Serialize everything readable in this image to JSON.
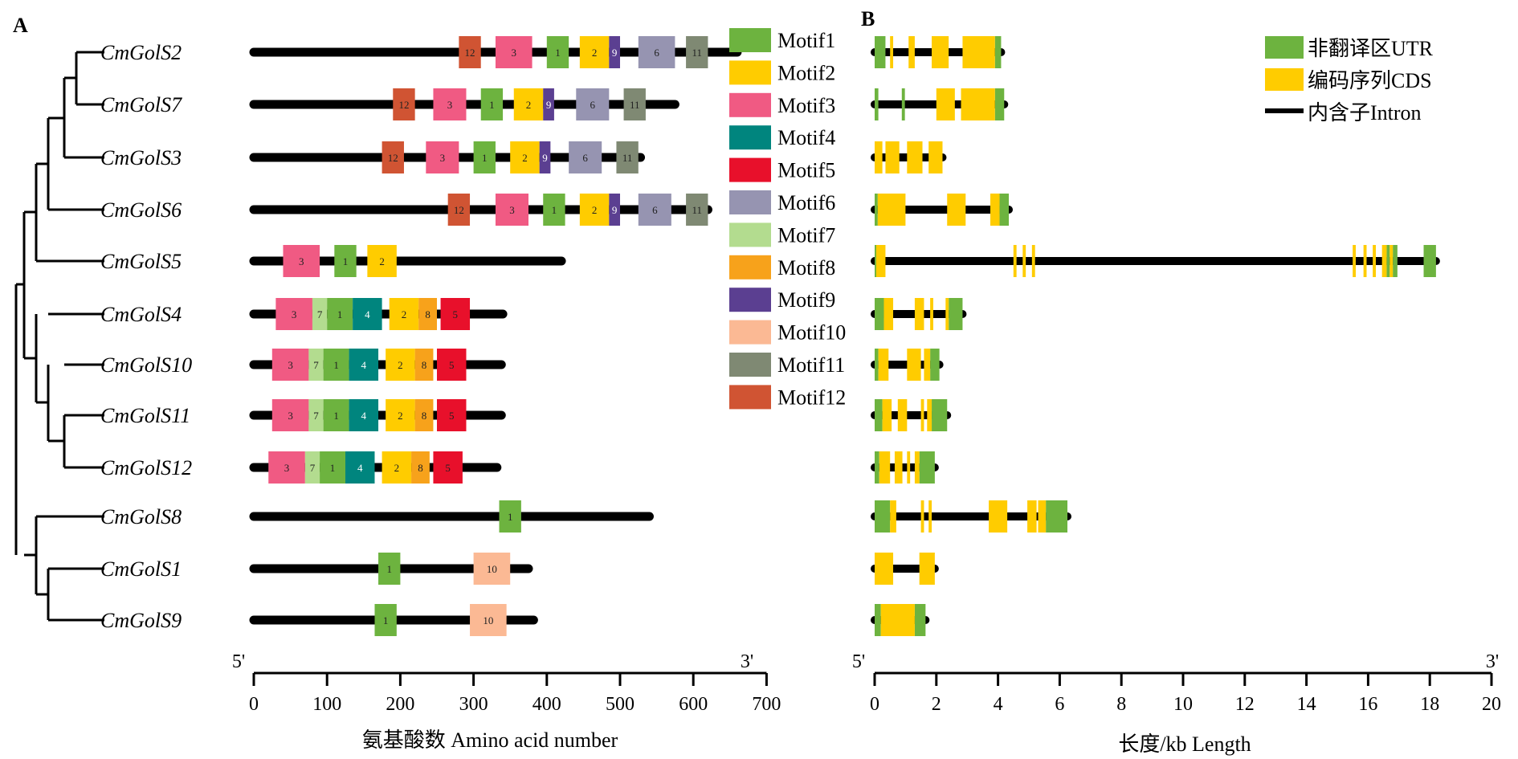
{
  "panel_a_label": "A",
  "panel_b_label": "B",
  "genes": [
    "CmGolS2",
    "CmGolS7",
    "CmGolS3",
    "CmGolS6",
    "CmGolS5",
    "CmGolS4",
    "CmGolS10",
    "CmGolS11",
    "CmGolS12",
    "CmGolS8",
    "CmGolS1",
    "CmGolS9"
  ],
  "motif_legend": [
    {
      "label": "Motif1",
      "color": "#6db33f"
    },
    {
      "label": "Motif2",
      "color": "#ffcc00"
    },
    {
      "label": "Motif3",
      "color": "#f05a83"
    },
    {
      "label": "Motif4",
      "color": "#00857e"
    },
    {
      "label": "Motif5",
      "color": "#e8102b"
    },
    {
      "label": "Motif6",
      "color": "#9694b1"
    },
    {
      "label": "Motif7",
      "color": "#b3dc8f"
    },
    {
      "label": "Motif8",
      "color": "#f7a21b"
    },
    {
      "label": "Motif9",
      "color": "#5b3f91"
    },
    {
      "label": "Motif10",
      "color": "#fbb994"
    },
    {
      "label": "Motif11",
      "color": "#7f8973"
    },
    {
      "label": "Motif12",
      "color": "#d05433"
    }
  ],
  "protein_lengths": [
    660,
    575,
    528,
    620,
    420,
    340,
    338,
    338,
    332,
    540,
    375,
    382
  ],
  "motifs": [
    [
      [
        12,
        280,
        310
      ],
      [
        3,
        330,
        380
      ],
      [
        1,
        400,
        430
      ],
      [
        2,
        445,
        485
      ],
      [
        9,
        485,
        500
      ],
      [
        6,
        525,
        575
      ],
      [
        11,
        590,
        620
      ]
    ],
    [
      [
        12,
        190,
        220
      ],
      [
        3,
        245,
        290
      ],
      [
        1,
        310,
        340
      ],
      [
        2,
        355,
        395
      ],
      [
        9,
        395,
        410
      ],
      [
        6,
        440,
        485
      ],
      [
        11,
        505,
        535
      ]
    ],
    [
      [
        12,
        175,
        205
      ],
      [
        3,
        235,
        280
      ],
      [
        1,
        300,
        330
      ],
      [
        2,
        350,
        390
      ],
      [
        9,
        390,
        405
      ],
      [
        6,
        430,
        475
      ],
      [
        11,
        495,
        525
      ]
    ],
    [
      [
        12,
        265,
        295
      ],
      [
        3,
        330,
        375
      ],
      [
        1,
        395,
        425
      ],
      [
        2,
        445,
        485
      ],
      [
        9,
        485,
        500
      ],
      [
        6,
        525,
        570
      ],
      [
        11,
        590,
        620
      ]
    ],
    [
      [
        3,
        40,
        90
      ],
      [
        1,
        110,
        140
      ],
      [
        2,
        155,
        195
      ]
    ],
    [
      [
        3,
        30,
        80
      ],
      [
        7,
        80,
        100
      ],
      [
        1,
        100,
        135
      ],
      [
        4,
        135,
        175
      ],
      [
        2,
        185,
        225
      ],
      [
        8,
        225,
        250
      ],
      [
        5,
        255,
        295
      ]
    ],
    [
      [
        3,
        25,
        75
      ],
      [
        7,
        75,
        95
      ],
      [
        1,
        95,
        130
      ],
      [
        4,
        130,
        170
      ],
      [
        2,
        180,
        220
      ],
      [
        8,
        220,
        245
      ],
      [
        5,
        250,
        290
      ]
    ],
    [
      [
        3,
        25,
        75
      ],
      [
        7,
        75,
        95
      ],
      [
        1,
        95,
        130
      ],
      [
        4,
        130,
        170
      ],
      [
        2,
        180,
        220
      ],
      [
        8,
        220,
        245
      ],
      [
        5,
        250,
        290
      ]
    ],
    [
      [
        3,
        20,
        70
      ],
      [
        7,
        70,
        90
      ],
      [
        1,
        90,
        125
      ],
      [
        4,
        125,
        165
      ],
      [
        2,
        175,
        215
      ],
      [
        8,
        215,
        240
      ],
      [
        5,
        245,
        285
      ]
    ],
    [
      [
        1,
        335,
        365
      ]
    ],
    [
      [
        1,
        170,
        200
      ],
      [
        10,
        300,
        350
      ]
    ],
    [
      [
        1,
        165,
        195
      ],
      [
        10,
        295,
        345
      ]
    ]
  ],
  "gene_structures": [
    {
      "len": 4.1,
      "utr": [
        [
          0,
          0.35
        ],
        [
          3.9,
          4.1
        ]
      ],
      "cds": [
        [
          0.5,
          0.6
        ],
        [
          1.1,
          1.3
        ],
        [
          1.85,
          2.4
        ],
        [
          2.85,
          3.9
        ]
      ]
    },
    {
      "len": 4.2,
      "utr": [
        [
          0,
          0.12
        ],
        [
          0.88,
          0.98
        ],
        [
          3.9,
          4.2
        ]
      ],
      "cds": [
        [
          2,
          2.6
        ],
        [
          2.8,
          3.9
        ]
      ]
    },
    {
      "len": 2.2,
      "utr": [],
      "cds": [
        [
          0,
          0.25
        ],
        [
          0.35,
          0.8
        ],
        [
          1.05,
          1.55
        ],
        [
          1.75,
          2.2
        ]
      ]
    },
    {
      "len": 4.35,
      "utr": [
        [
          0,
          0.1
        ],
        [
          4.05,
          4.35
        ]
      ],
      "cds": [
        [
          0.1,
          1
        ],
        [
          2.35,
          2.95
        ],
        [
          3.75,
          4.05
        ]
      ]
    },
    {
      "len": 18.2,
      "utr": [
        [
          0,
          0.05
        ],
        [
          17.8,
          18.2
        ]
      ],
      "cds": [
        [
          0.05,
          0.35
        ],
        [
          4.5,
          4.6
        ],
        [
          4.8,
          4.9
        ],
        [
          5.1,
          5.2
        ],
        [
          15.5,
          15.6
        ],
        [
          15.85,
          15.95
        ],
        [
          16.15,
          16.25
        ],
        [
          16.45,
          16.6
        ],
        [
          16.7,
          16.8
        ]
      ],
      "utr_extra": [
        [
          16.6,
          16.7
        ],
        [
          16.8,
          16.95
        ]
      ]
    },
    {
      "len": 2.85,
      "utr": [
        [
          0,
          0.3
        ],
        [
          2.4,
          2.85
        ]
      ],
      "cds": [
        [
          0.3,
          0.6
        ],
        [
          1.3,
          1.6
        ],
        [
          1.8,
          1.9
        ],
        [
          2.3,
          2.4
        ]
      ]
    },
    {
      "len": 2.1,
      "utr": [
        [
          0,
          0.12
        ],
        [
          1.8,
          2.1
        ]
      ],
      "cds": [
        [
          0.12,
          0.45
        ],
        [
          1.05,
          1.5
        ],
        [
          1.6,
          1.8
        ]
      ]
    },
    {
      "len": 2.35,
      "utr": [
        [
          0,
          0.25
        ],
        [
          1.85,
          2.35
        ]
      ],
      "cds": [
        [
          0.25,
          0.55
        ],
        [
          0.75,
          1.05
        ],
        [
          1.5,
          1.6
        ],
        [
          1.7,
          1.85
        ]
      ]
    },
    {
      "len": 1.95,
      "utr": [
        [
          0,
          0.15
        ],
        [
          1.45,
          1.95
        ]
      ],
      "cds": [
        [
          0.15,
          0.5
        ],
        [
          0.65,
          0.9
        ],
        [
          1.05,
          1.15
        ],
        [
          1.3,
          1.45
        ]
      ]
    },
    {
      "len": 6.25,
      "utr": [
        [
          0,
          0.5
        ],
        [
          5.55,
          6.25
        ]
      ],
      "cds": [
        [
          0.5,
          0.7
        ],
        [
          1.5,
          1.6
        ],
        [
          1.75,
          1.85
        ],
        [
          3.7,
          4.3
        ],
        [
          4.95,
          5.25
        ],
        [
          5.3,
          5.55
        ]
      ]
    },
    {
      "len": 1.95,
      "utr": [],
      "cds": [
        [
          0,
          0.6
        ],
        [
          1.45,
          1.95
        ]
      ]
    },
    {
      "len": 1.65,
      "utr": [
        [
          0,
          0.2
        ],
        [
          1.3,
          1.65
        ]
      ],
      "cds": [
        [
          0.2,
          1.3
        ]
      ]
    }
  ],
  "structure_legend": [
    {
      "label": "非翻译区UTR",
      "color": "#6db33f",
      "kind": "box"
    },
    {
      "label": "编码序列CDS",
      "color": "#ffcc00",
      "kind": "box"
    },
    {
      "label": "内含子Intron",
      "color": "#000000",
      "kind": "line"
    }
  ],
  "axis_a": {
    "start": "5'",
    "end": "3'",
    "ticks": [
      0,
      100,
      200,
      300,
      400,
      500,
      600,
      700
    ],
    "label": "氨基酸数 Amino acid number"
  },
  "axis_b": {
    "start": "5'",
    "end": "3'",
    "ticks": [
      0,
      2,
      4,
      6,
      8,
      10,
      12,
      14,
      16,
      18,
      20
    ],
    "label": "长度/kb Length"
  }
}
